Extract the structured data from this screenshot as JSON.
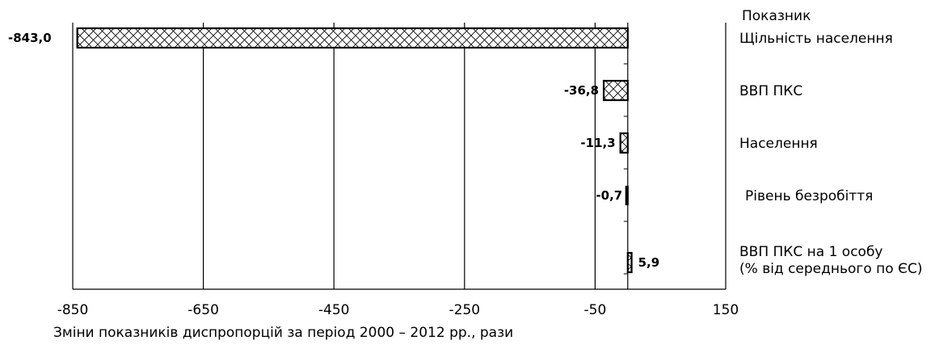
{
  "chart_data": {
    "type": "bar",
    "orientation": "horizontal",
    "legend_title": "Показник",
    "xlabel": "Зміни показників диспропорцій за період 2000 – 2012 рр., рази",
    "xlim": [
      -850,
      150
    ],
    "xticks": [
      -850,
      -650,
      -450,
      -250,
      -50,
      150
    ],
    "xtick_labels": [
      "-850",
      "-650",
      "-450",
      "-250",
      "-50",
      "150"
    ],
    "grid": "vertical",
    "categories": [
      "Щільність населення",
      "ВВП ПКС",
      "Населення",
      "Рівень безробіття",
      "ВВП ПКС на 1 особу (% від середнього по ЄС)"
    ],
    "category_lines": [
      [
        "Щільність населення"
      ],
      [
        "ВВП ПКС"
      ],
      [
        "Населення"
      ],
      [
        "Рівень безробіття"
      ],
      [
        "ВВП ПКС на 1 особу",
        "(% від середнього по ЄС)"
      ]
    ],
    "values": [
      -843.0,
      -36.8,
      -11.3,
      -0.7,
      5.9
    ],
    "value_labels": [
      "843,0",
      "36,8",
      "11,3",
      "0,7",
      "5,9"
    ],
    "fill_pattern": "crosshatch",
    "colors": {
      "bar_fill": "#ffffff",
      "hatch": "#000000",
      "axis": "#000000"
    }
  }
}
